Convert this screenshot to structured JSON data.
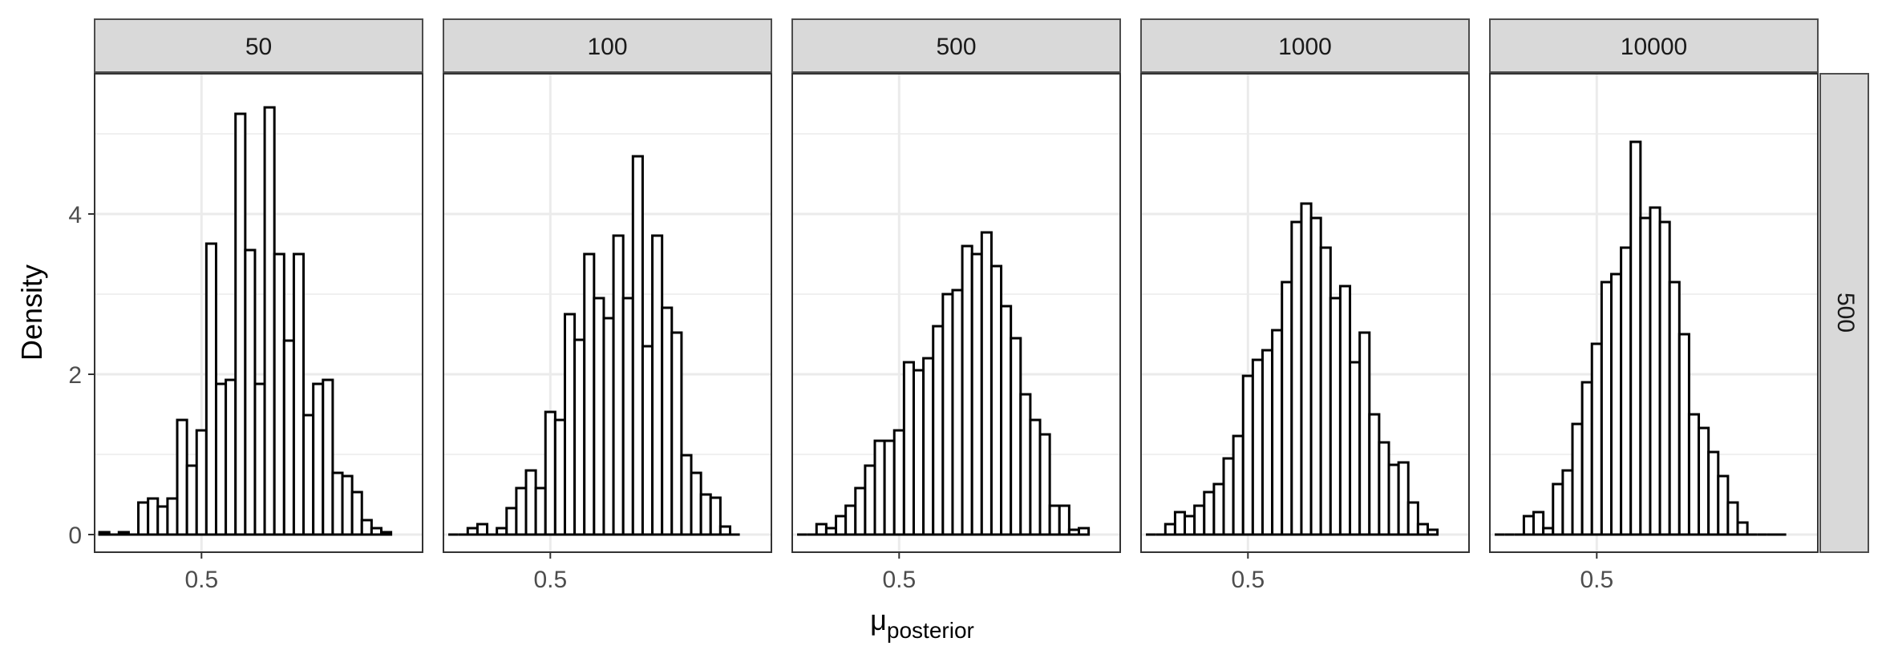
{
  "chart_data": {
    "type": "histogram",
    "title": "",
    "xlabel": "μ",
    "xlabel_subscript": "posterior",
    "ylabel": "Density",
    "xlim": [
      0.28,
      0.955
    ],
    "ylim": [
      -0.22,
      5.75
    ],
    "x_ticks": [
      0.5
    ],
    "x_tick_labels": [
      "0.5"
    ],
    "y_ticks": [
      0,
      2,
      4
    ],
    "y_tick_labels": [
      "0",
      "2",
      "4"
    ],
    "grid": true,
    "bin_width": 0.02,
    "strip_color": "#d9d9d9",
    "bar_fill": "#ffffff",
    "bar_stroke": "#000000",
    "grid_color": "#ebebeb",
    "row_strip": "500",
    "panels": [
      {
        "label": "50",
        "bins_start": 0.29,
        "values": [
          0.03,
          0.0,
          0.03,
          0.0,
          0.4,
          0.45,
          0.35,
          0.45,
          1.43,
          0.86,
          1.3,
          3.63,
          1.88,
          1.93,
          5.25,
          3.55,
          1.88,
          5.33,
          3.5,
          2.42,
          3.5,
          1.49,
          1.88,
          1.93,
          0.77,
          0.73,
          0.53,
          0.18,
          0.08,
          0.03
        ]
      },
      {
        "label": "100",
        "bins_start": 0.29,
        "values": [
          0.0,
          0.0,
          0.08,
          0.13,
          0.0,
          0.08,
          0.33,
          0.58,
          0.8,
          0.58,
          1.53,
          1.43,
          2.75,
          2.43,
          3.5,
          2.95,
          2.7,
          3.73,
          2.95,
          4.72,
          2.35,
          3.73,
          2.83,
          2.52,
          0.99,
          0.77,
          0.5,
          0.46,
          0.1,
          0.0
        ]
      },
      {
        "label": "500",
        "bins_start": 0.29,
        "values": [
          0.0,
          0.0,
          0.13,
          0.08,
          0.23,
          0.36,
          0.58,
          0.86,
          1.17,
          1.17,
          1.3,
          2.15,
          2.05,
          2.2,
          2.6,
          3.0,
          3.05,
          3.6,
          3.5,
          3.77,
          3.35,
          2.85,
          2.45,
          1.75,
          1.43,
          1.25,
          0.36,
          0.36,
          0.06,
          0.08
        ]
      },
      {
        "label": "1000",
        "bins_start": 0.29,
        "values": [
          0.0,
          0.0,
          0.13,
          0.28,
          0.23,
          0.36,
          0.53,
          0.63,
          0.95,
          1.23,
          1.98,
          2.18,
          2.3,
          2.55,
          3.15,
          3.9,
          4.13,
          3.95,
          3.58,
          2.95,
          3.1,
          2.15,
          2.52,
          1.5,
          1.15,
          0.87,
          0.9,
          0.4,
          0.13,
          0.06
        ]
      },
      {
        "label": "10000",
        "bins_start": 0.29,
        "values": [
          0.0,
          0.0,
          0.0,
          0.23,
          0.28,
          0.08,
          0.63,
          0.8,
          1.38,
          1.9,
          2.38,
          3.15,
          3.25,
          3.58,
          4.9,
          3.95,
          4.08,
          3.9,
          3.15,
          2.5,
          1.5,
          1.33,
          1.03,
          0.73,
          0.4,
          0.15,
          0.0,
          0.0,
          0.0,
          0.0
        ]
      }
    ]
  }
}
